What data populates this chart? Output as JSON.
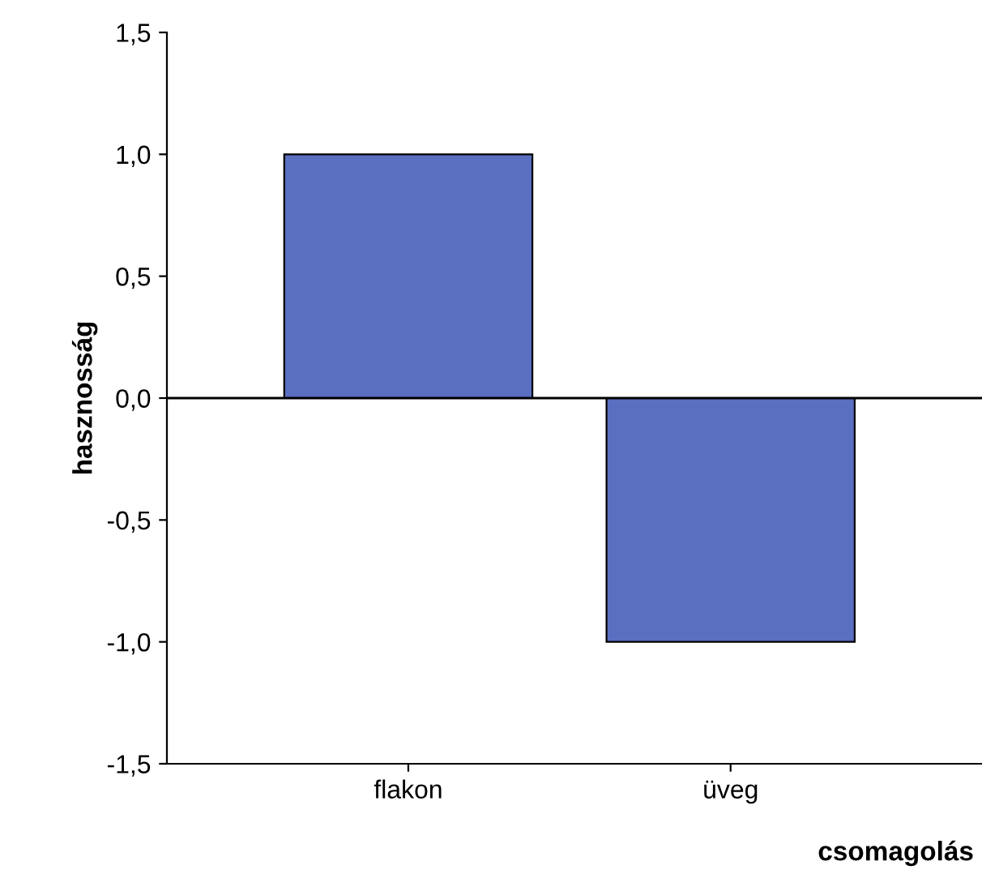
{
  "chart_data": {
    "type": "bar",
    "xlabel": "csomagolás",
    "ylabel": "hasznosság",
    "categories": [
      "flakon",
      "üveg"
    ],
    "values": [
      1.0,
      -1.0
    ],
    "color": "#5a6fc0",
    "ylim": [
      -1.5,
      1.5
    ],
    "yticks": [
      {
        "value": -1.5,
        "label": "-1,5"
      },
      {
        "value": -1.0,
        "label": "-1,0"
      },
      {
        "value": -0.5,
        "label": "-0,5"
      },
      {
        "value": 0,
        "label": "0,0"
      },
      {
        "value": 0.5,
        "label": "0,5"
      },
      {
        "value": 1.0,
        "label": "1,0"
      },
      {
        "value": 1.5,
        "label": "1,5"
      }
    ],
    "ref_lines": [
      {
        "axis": "y",
        "value": 0,
        "color": "#000000"
      }
    ],
    "grid": false,
    "legend": false
  }
}
